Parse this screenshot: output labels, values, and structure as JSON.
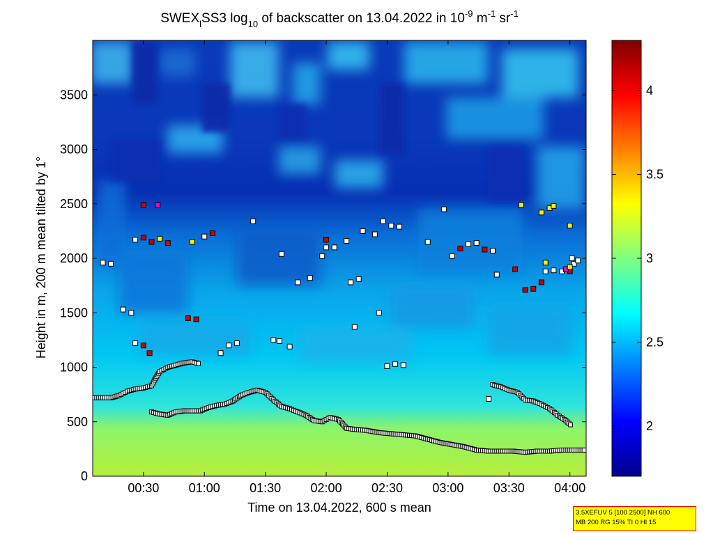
{
  "chart_data": {
    "type": "heatmap",
    "title": {
      "prefix": "SWEX",
      "sub_l": "l",
      "mid": "SS3 log",
      "sub_10": "10",
      "rest": " of backscatter on 13.04.2022 in 10",
      "sup_exp": "-9",
      "unit_m": " m",
      "sup_m": "-1",
      "unit_sr": " sr",
      "sup_sr": "-1"
    },
    "xlabel": "Time on 13.04.2022, 600 s mean",
    "ylabel": "Height in m, 200 m mean tilted by 1°",
    "xlim": [
      "00:05",
      "04:08"
    ],
    "ylim": [
      0,
      4000
    ],
    "x_ticks": [
      "00:30",
      "01:00",
      "01:30",
      "02:00",
      "02:30",
      "03:00",
      "03:30",
      "04:00"
    ],
    "y_ticks": [
      0,
      500,
      1000,
      1500,
      2000,
      2500,
      3000,
      3500
    ],
    "colorbar": {
      "range": [
        1.7,
        4.3
      ],
      "ticks": [
        "2",
        "2.5",
        "3",
        "3.5",
        "4"
      ],
      "colormap": "jet"
    },
    "series": [
      {
        "values": [
          [
            "00:06",
            720
          ],
          [
            "00:10",
            720
          ],
          [
            "00:14",
            720
          ],
          [
            "00:18",
            740
          ],
          [
            "00:22",
            780
          ],
          [
            "00:26",
            800
          ],
          [
            "00:30",
            810
          ],
          [
            "00:34",
            830
          ],
          [
            "00:36",
            900
          ],
          [
            "00:38",
            960
          ],
          [
            "00:42",
            1000
          ],
          [
            "00:46",
            1020
          ],
          [
            "00:50",
            1040
          ],
          [
            "00:54",
            1050
          ],
          [
            "00:58",
            1030
          ]
        ]
      },
      {
        "values": [
          [
            "00:34",
            590
          ],
          [
            "00:38",
            570
          ],
          [
            "00:42",
            560
          ],
          [
            "00:46",
            590
          ],
          [
            "00:50",
            600
          ],
          [
            "00:54",
            600
          ],
          [
            "00:58",
            600
          ],
          [
            "01:02",
            630
          ],
          [
            "01:06",
            650
          ],
          [
            "01:10",
            660
          ],
          [
            "01:14",
            690
          ],
          [
            "01:18",
            740
          ],
          [
            "01:22",
            770
          ],
          [
            "01:26",
            790
          ],
          [
            "01:30",
            770
          ],
          [
            "01:34",
            700
          ],
          [
            "01:38",
            640
          ],
          [
            "01:42",
            620
          ],
          [
            "01:46",
            590
          ],
          [
            "01:50",
            560
          ],
          [
            "01:54",
            510
          ],
          [
            "01:58",
            500
          ],
          [
            "02:02",
            540
          ],
          [
            "02:06",
            520
          ],
          [
            "02:10",
            440
          ],
          [
            "02:14",
            430
          ],
          [
            "02:20",
            420
          ],
          [
            "02:26",
            400
          ],
          [
            "02:32",
            390
          ],
          [
            "02:38",
            380
          ],
          [
            "02:44",
            370
          ],
          [
            "02:50",
            340
          ],
          [
            "02:56",
            310
          ],
          [
            "03:02",
            290
          ],
          [
            "03:08",
            270
          ],
          [
            "03:14",
            240
          ],
          [
            "03:20",
            230
          ],
          [
            "03:26",
            230
          ],
          [
            "03:32",
            230
          ],
          [
            "03:38",
            220
          ],
          [
            "03:44",
            230
          ],
          [
            "03:50",
            230
          ],
          [
            "03:56",
            240
          ],
          [
            "04:02",
            240
          ],
          [
            "04:08",
            240
          ]
        ]
      },
      {
        "values": [
          [
            "03:22",
            840
          ],
          [
            "03:26",
            820
          ],
          [
            "03:30",
            790
          ],
          [
            "03:34",
            770
          ],
          [
            "03:38",
            700
          ],
          [
            "03:42",
            690
          ],
          [
            "03:46",
            660
          ],
          [
            "03:50",
            620
          ],
          [
            "03:54",
            560
          ],
          [
            "03:58",
            510
          ],
          [
            "04:01",
            460
          ]
        ]
      }
    ],
    "markers": [
      {
        "x": "00:10",
        "y": 1960,
        "c": "#ffffff"
      },
      {
        "x": "00:14",
        "y": 1950,
        "c": "#ffffff"
      },
      {
        "x": "00:20",
        "y": 1530,
        "c": "#ffffff"
      },
      {
        "x": "00:24",
        "y": 1500,
        "c": "#ffffff"
      },
      {
        "x": "00:26",
        "y": 1220,
        "c": "#ffffff"
      },
      {
        "x": "00:30",
        "y": 1200,
        "c": "#cc0000"
      },
      {
        "x": "00:33",
        "y": 1130,
        "c": "#cc0000"
      },
      {
        "x": "00:30",
        "y": 2490,
        "c": "#cc0000"
      },
      {
        "x": "00:37",
        "y": 2490,
        "c": "#ff00cc"
      },
      {
        "x": "00:30",
        "y": 2190,
        "c": "#cc0000"
      },
      {
        "x": "00:34",
        "y": 2150,
        "c": "#cc0000"
      },
      {
        "x": "00:38",
        "y": 2180,
        "c": "#ffee00"
      },
      {
        "x": "00:42",
        "y": 2140,
        "c": "#cc0000"
      },
      {
        "x": "00:26",
        "y": 2170,
        "c": "#ffffff"
      },
      {
        "x": "00:52",
        "y": 1450,
        "c": "#cc0000"
      },
      {
        "x": "00:56",
        "y": 1440,
        "c": "#cc0000"
      },
      {
        "x": "00:54",
        "y": 2150,
        "c": "#ffee00"
      },
      {
        "x": "01:00",
        "y": 2200,
        "c": "#ffffff"
      },
      {
        "x": "01:04",
        "y": 2230,
        "c": "#cc0000"
      },
      {
        "x": "01:08",
        "y": 1130,
        "c": "#ffffff"
      },
      {
        "x": "01:12",
        "y": 1200,
        "c": "#ffffff"
      },
      {
        "x": "01:16",
        "y": 1220,
        "c": "#ffffff"
      },
      {
        "x": "01:24",
        "y": 2340,
        "c": "#ffffff"
      },
      {
        "x": "01:34",
        "y": 1250,
        "c": "#ffffff"
      },
      {
        "x": "01:37",
        "y": 1240,
        "c": "#ffffff"
      },
      {
        "x": "01:42",
        "y": 1190,
        "c": "#ffffff"
      },
      {
        "x": "01:38",
        "y": 2040,
        "c": "#ffffff"
      },
      {
        "x": "01:46",
        "y": 1780,
        "c": "#ffffff"
      },
      {
        "x": "01:52",
        "y": 1820,
        "c": "#ffffff"
      },
      {
        "x": "01:58",
        "y": 2020,
        "c": "#ffffff"
      },
      {
        "x": "02:00",
        "y": 2100,
        "c": "#ffffff"
      },
      {
        "x": "02:04",
        "y": 2100,
        "c": "#ffffff"
      },
      {
        "x": "02:00",
        "y": 2170,
        "c": "#cc0000"
      },
      {
        "x": "02:10",
        "y": 2160,
        "c": "#ffffff"
      },
      {
        "x": "02:12",
        "y": 1780,
        "c": "#ffffff"
      },
      {
        "x": "02:16",
        "y": 1810,
        "c": "#ffffff"
      },
      {
        "x": "02:14",
        "y": 1370,
        "c": "#ffffff"
      },
      {
        "x": "02:18",
        "y": 2250,
        "c": "#ffffff"
      },
      {
        "x": "02:24",
        "y": 2220,
        "c": "#ffffff"
      },
      {
        "x": "02:26",
        "y": 1500,
        "c": "#ffffff"
      },
      {
        "x": "02:28",
        "y": 2340,
        "c": "#ffffff"
      },
      {
        "x": "02:32",
        "y": 2300,
        "c": "#ffffff"
      },
      {
        "x": "02:36",
        "y": 2290,
        "c": "#ffffff"
      },
      {
        "x": "02:30",
        "y": 1010,
        "c": "#ffffff"
      },
      {
        "x": "02:34",
        "y": 1030,
        "c": "#ffffff"
      },
      {
        "x": "02:38",
        "y": 1020,
        "c": "#ffffff"
      },
      {
        "x": "02:50",
        "y": 2150,
        "c": "#ffffff"
      },
      {
        "x": "02:58",
        "y": 2450,
        "c": "#ffffff"
      },
      {
        "x": "03:02",
        "y": 2020,
        "c": "#ffffff"
      },
      {
        "x": "03:06",
        "y": 2090,
        "c": "#cc0000"
      },
      {
        "x": "03:10",
        "y": 2130,
        "c": "#ffffff"
      },
      {
        "x": "03:14",
        "y": 2140,
        "c": "#ffffff"
      },
      {
        "x": "03:18",
        "y": 2080,
        "c": "#cc0000"
      },
      {
        "x": "03:22",
        "y": 2070,
        "c": "#ffffff"
      },
      {
        "x": "03:20",
        "y": 710,
        "c": "#ffffff"
      },
      {
        "x": "03:24",
        "y": 1850,
        "c": "#ffffff"
      },
      {
        "x": "03:33",
        "y": 1900,
        "c": "#cc0000"
      },
      {
        "x": "03:38",
        "y": 1710,
        "c": "#cc0000"
      },
      {
        "x": "03:42",
        "y": 1720,
        "c": "#cc0000"
      },
      {
        "x": "03:46",
        "y": 1780,
        "c": "#cc0000"
      },
      {
        "x": "03:48",
        "y": 1880,
        "c": "#ffffff"
      },
      {
        "x": "03:52",
        "y": 1890,
        "c": "#ffffff"
      },
      {
        "x": "03:56",
        "y": 1880,
        "c": "#ffffff"
      },
      {
        "x": "04:00",
        "y": 1880,
        "c": "#cc0000"
      },
      {
        "x": "03:58",
        "y": 1900,
        "c": "#ff00cc"
      },
      {
        "x": "04:02",
        "y": 1950,
        "c": "#ffffff"
      },
      {
        "x": "04:04",
        "y": 1980,
        "c": "#ffffff"
      },
      {
        "x": "03:48",
        "y": 1960,
        "c": "#ffee00"
      },
      {
        "x": "03:36",
        "y": 2490,
        "c": "#ffee00"
      },
      {
        "x": "03:46",
        "y": 2420,
        "c": "#ffee00"
      },
      {
        "x": "03:50",
        "y": 2460,
        "c": "#ffee00"
      },
      {
        "x": "03:52",
        "y": 2480,
        "c": "#ffee00"
      },
      {
        "x": "04:00",
        "y": 2300,
        "c": "#ffee00"
      },
      {
        "x": "04:01",
        "y": 2000,
        "c": "#ffffff"
      },
      {
        "x": "04:00",
        "y": 1920,
        "c": "#ffee00"
      }
    ]
  },
  "info_box": {
    "line1": "3.5XEFUV 5 [100 2500] NH 600",
    "line2": "MB 200 RG 15% TI 0 HI 15"
  }
}
